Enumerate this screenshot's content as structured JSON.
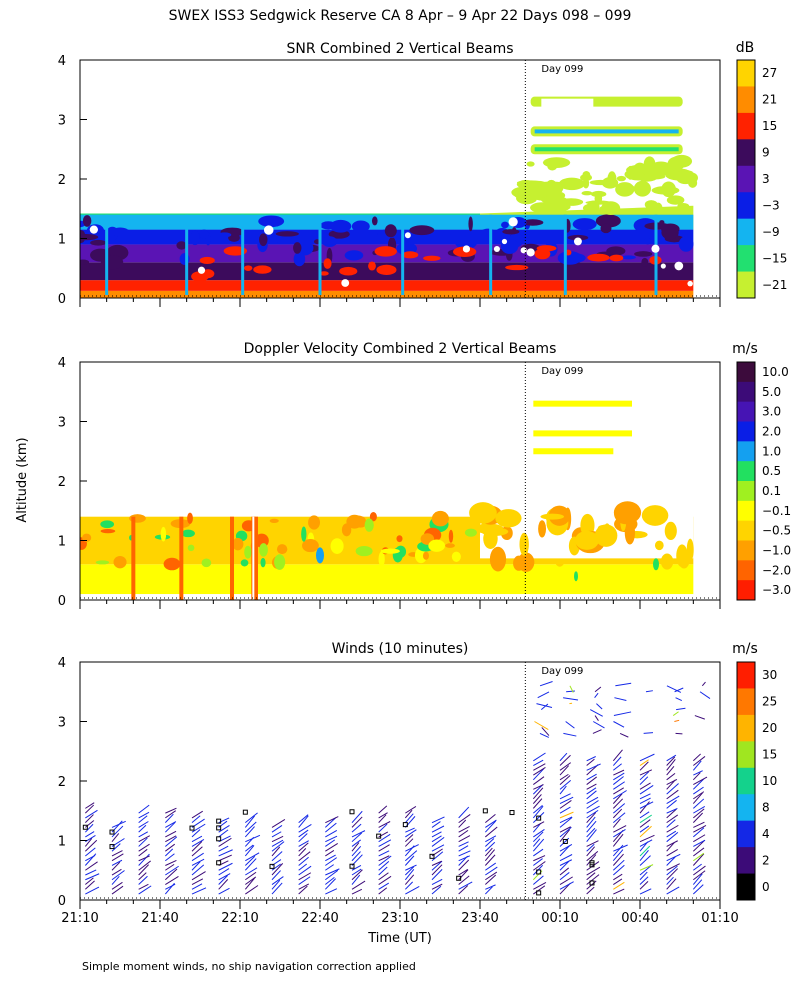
{
  "page": {
    "title": "SWEX ISS3 Sedgwick Reserve CA   8 Apr –  9 Apr 22 Days 098 – 099",
    "ylabel": "Altitude (km)",
    "xlabel": "Time (UT)",
    "footnote": "Simple moment winds, no ship navigation correction applied",
    "day_marker_label": "Day 099",
    "day_marker_time": "23:57"
  },
  "chart_data": [
    {
      "id": "snr",
      "type": "heatmap",
      "title": "SNR Combined 2 Vertical Beams",
      "ylabel": "Altitude (km)",
      "xlim": [
        "21:10",
        "01:10"
      ],
      "ylim": [
        0,
        4
      ],
      "yticks": [
        0,
        1,
        2,
        3,
        4
      ],
      "colorbar": {
        "unit": "dB",
        "labels": [
          "27",
          "21",
          "15",
          "9",
          "3",
          "−3",
          "−9",
          "−15",
          "−21"
        ],
        "colors": [
          "#ffd400",
          "#ff8c00",
          "#ff2200",
          "#3c0b5c",
          "#5a14b4",
          "#0a1ee6",
          "#14b4f0",
          "#22e070",
          "#c6f030"
        ]
      },
      "layers": [
        {
          "from": 0.0,
          "to": 0.12,
          "color_db": 21
        },
        {
          "from": 0.12,
          "to": 0.3,
          "color_db": 15
        },
        {
          "from": 0.3,
          "to": 0.6,
          "color_db": 9
        },
        {
          "from": 0.6,
          "to": 0.9,
          "color_db": 3
        },
        {
          "from": 0.9,
          "to": 1.15,
          "color_db": -3
        },
        {
          "from": 1.15,
          "to": 1.4,
          "color_db": -9
        }
      ],
      "upper_echoes": [
        {
          "from": "23:59",
          "to": "00:56",
          "alt": 3.3,
          "color_db": -21
        },
        {
          "from": "23:59",
          "to": "00:56",
          "alt": 2.8,
          "color_db": -9
        },
        {
          "from": "23:59",
          "to": "00:56",
          "alt": 2.5,
          "color_db": -15
        }
      ]
    },
    {
      "id": "doppler",
      "type": "heatmap",
      "title": "Doppler Velocity Combined 2 Vertical Beams",
      "ylabel": "Altitude (km)",
      "xlim": [
        "21:10",
        "01:10"
      ],
      "ylim": [
        0,
        4
      ],
      "yticks": [
        0,
        1,
        2,
        3,
        4
      ],
      "colorbar": {
        "unit": "m/s",
        "labels": [
          "10.0",
          "5.0",
          "3.0",
          "2.0",
          "1.0",
          "0.5",
          "0.1",
          "−0.1",
          "−0.5",
          "−1.0",
          "−2.0",
          "−3.0"
        ],
        "colors": [
          "#3c0b3c",
          "#3c0b78",
          "#4614b4",
          "#0a1ee6",
          "#14a0f0",
          "#22e060",
          "#a0f020",
          "#ffff00",
          "#ffd400",
          "#ffa000",
          "#ff6400",
          "#ff1e00"
        ]
      },
      "layers": [
        {
          "from": 0.1,
          "to": 0.6,
          "color_ms": -0.1
        },
        {
          "from": 0.6,
          "to": 1.4,
          "color_ms": -0.5
        }
      ],
      "upper_echoes": [
        {
          "from": "00:00",
          "to": "00:37",
          "alt": 3.3,
          "color_ms": -0.1
        },
        {
          "from": "00:00",
          "to": "00:37",
          "alt": 2.8,
          "color_ms": -0.1
        },
        {
          "from": "00:00",
          "to": "00:30",
          "alt": 2.5,
          "color_ms": -0.1
        }
      ]
    },
    {
      "id": "winds",
      "type": "scatter",
      "title": "Winds (10 minutes)",
      "ylabel": "Altitude (km)",
      "xlabel": "Time (UT)",
      "xlim": [
        "21:10",
        "01:10"
      ],
      "ylim": [
        0,
        4
      ],
      "yticks": [
        0,
        1,
        2,
        3,
        4
      ],
      "xticks": [
        "21:10",
        "21:40",
        "22:10",
        "22:40",
        "23:10",
        "23:40",
        "00:10",
        "00:40",
        "01:10"
      ],
      "colorbar": {
        "unit": "m/s",
        "labels": [
          "30",
          "25",
          "20",
          "15",
          "10",
          "8",
          "4",
          "2",
          "0"
        ],
        "colors": [
          "#ff1e00",
          "#ff7800",
          "#ffb400",
          "#a0e620",
          "#14d28c",
          "#14b4f0",
          "#1428e6",
          "#3c0b78",
          "#000000"
        ]
      },
      "profiles_before_day099": {
        "first": "21:12",
        "last": "23:51",
        "spacing_min": 10,
        "max_alt_km": 1.6,
        "typical_speed_ms": 4
      },
      "profiles_after_day099": {
        "first": "00:00",
        "last": "01:00",
        "spacing_min": 10,
        "max_alt_km": 3.7,
        "typical_speed_ms": 4
      }
    }
  ]
}
